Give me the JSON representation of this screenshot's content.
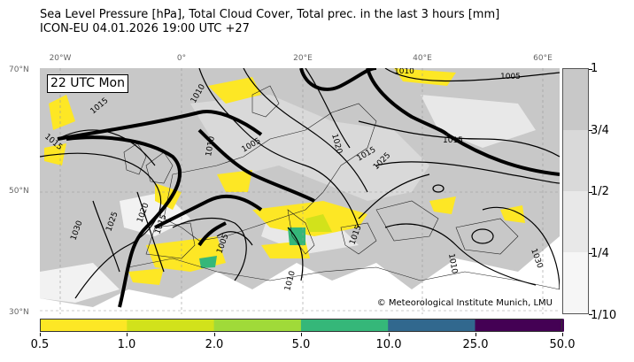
{
  "title": {
    "line1": "Sea Level Pressure [hPa], Total Cloud Cover, Total prec. in the last 3 hours [mm]",
    "line2": "ICON-EU 04.01.2026 19:00 UTC +27"
  },
  "map": {
    "time_label": "22 UTC Mon",
    "copyright": "© Meteorological Institute Munich, LMU",
    "lon_labels": [
      "20°W",
      "0°",
      "20°E",
      "40°E",
      "60°E"
    ],
    "lat_labels": [
      "70°N",
      "50°N",
      "30°N"
    ],
    "isobar_labels": [
      "1005",
      "1010",
      "1015",
      "1015",
      "1010",
      "1020",
      "1025",
      "1030",
      "1025",
      "1020",
      "1015",
      "1010",
      "1005",
      "1015",
      "1010",
      "1015",
      "1030",
      "1010",
      "1005",
      "1015"
    ],
    "colors": {
      "isobar": "#000000",
      "front_line": "#000000",
      "cloud_overcast": "#c8c8c8",
      "cloud_broken": "#d9d9d9",
      "precip_light": "#fde725",
      "precip_moderate": "#d2e21b",
      "precip_heavy": "#35b779"
    }
  },
  "cloud_colorbar": {
    "labels": [
      "1",
      "3/4",
      "1/2",
      "1/4",
      "1/10"
    ],
    "levels": [
      1.0,
      0.75,
      0.5,
      0.25,
      0.1
    ],
    "colors": [
      "#c8c8c8",
      "#d9d9d9",
      "#e8e8e8",
      "#f6f6f6"
    ]
  },
  "precip_colorbar": {
    "labels": [
      "0.5",
      "1.0",
      "2.0",
      "5.0",
      "10.0",
      "25.0",
      "50.0"
    ],
    "levels": [
      0.5,
      1.0,
      2.0,
      5.0,
      10.0,
      25.0,
      50.0
    ],
    "colors": [
      "#fde725",
      "#fde725",
      "#d2e21b",
      "#a0da39",
      "#35b779",
      "#31688e",
      "#440154"
    ],
    "extend": "max"
  }
}
